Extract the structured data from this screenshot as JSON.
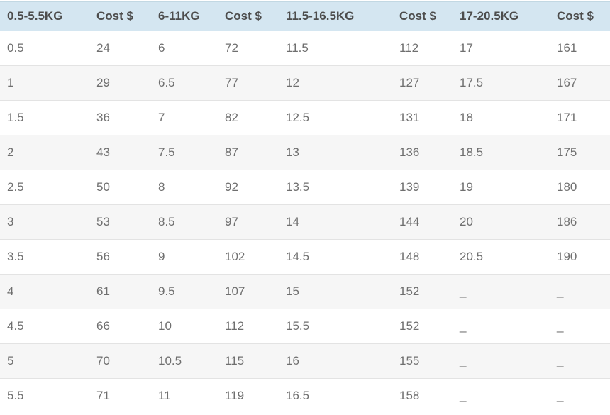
{
  "colors": {
    "header_bg": "#d4e6f1",
    "header_text": "#4d4d4d",
    "body_text": "#6f6f6f",
    "alt_row_bg": "#f6f6f6",
    "row_border": "#e3e3e3"
  },
  "table": {
    "headers": [
      "0.5-5.5KG",
      "Cost $",
      "6-11KG",
      "Cost $",
      "11.5-16.5KG",
      "Cost $",
      "17-20.5KG",
      "Cost $"
    ],
    "rows": [
      [
        "0.5",
        "24",
        "6",
        "72",
        "11.5",
        "112",
        "17",
        "161"
      ],
      [
        "1",
        "29",
        "6.5",
        "77",
        "12",
        "127",
        "17.5",
        "167"
      ],
      [
        "1.5",
        "36",
        "7",
        "82",
        "12.5",
        "131",
        "18",
        "171"
      ],
      [
        "2",
        "43",
        "7.5",
        "87",
        "13",
        "136",
        "18.5",
        "175"
      ],
      [
        "2.5",
        "50",
        "8",
        "92",
        "13.5",
        "139",
        "19",
        "180"
      ],
      [
        "3",
        "53",
        "8.5",
        "97",
        "14",
        "144",
        "20",
        "186"
      ],
      [
        "3.5",
        "56",
        "9",
        "102",
        "14.5",
        "148",
        "20.5",
        "190"
      ],
      [
        "4",
        "61",
        "9.5",
        "107",
        "15",
        "152",
        "_",
        "_"
      ],
      [
        "4.5",
        "66",
        "10",
        "112",
        "15.5",
        "152",
        "_",
        "_"
      ],
      [
        "5",
        "70",
        "10.5",
        "115",
        "16",
        "155",
        "_",
        "_"
      ],
      [
        "5.5",
        "71",
        "11",
        "119",
        "16.5",
        "158",
        "_",
        "_"
      ]
    ]
  }
}
